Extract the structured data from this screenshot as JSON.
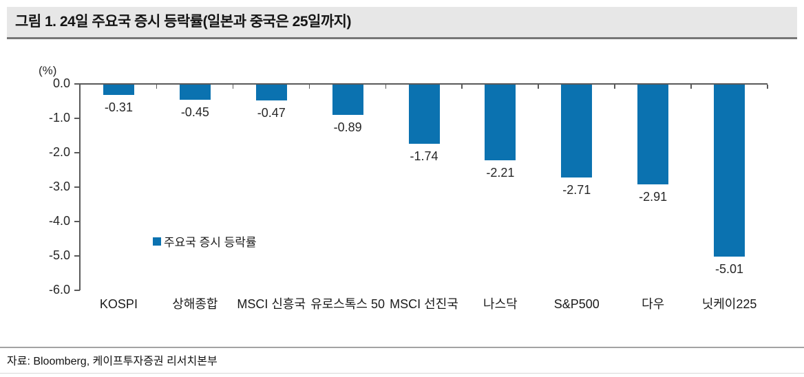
{
  "figure": {
    "title": "그림 1. 24일 주요국 증시 등락률(일본과 중국은 25일까지)",
    "source": "자료: Bloomberg, 케이프투자증권 리서치본부"
  },
  "chart_data": {
    "type": "bar",
    "title": "",
    "unit_label": "(%)",
    "legend": "주요국 증시 등락률",
    "legend_position": "inside-left-middle",
    "categories": [
      "KOSPI",
      "상해종합",
      "MSCI 신흥국",
      "유로스톡스 50",
      "MSCI 선진국",
      "나스닥",
      "S&P500",
      "다우",
      "닛케이225"
    ],
    "values": [
      -0.31,
      -0.45,
      -0.47,
      -0.89,
      -1.74,
      -2.21,
      -2.71,
      -2.91,
      -5.01
    ],
    "value_labels": [
      "-0.31",
      "-0.45",
      "-0.47",
      "-0.89",
      "-1.74",
      "-2.21",
      "-2.71",
      "-2.91",
      "-5.01"
    ],
    "ylim": [
      -6.0,
      0.0
    ],
    "yticks": [
      0.0,
      -1.0,
      -2.0,
      -3.0,
      -4.0,
      -5.0,
      -6.0
    ],
    "ytick_labels": [
      "0.0",
      "-1.0",
      "-2.0",
      "-3.0",
      "-4.0",
      "-5.0",
      "-6.0"
    ],
    "xlabel": "",
    "ylabel": "(%)",
    "grid": false,
    "bar_color": "#0b72b0"
  }
}
